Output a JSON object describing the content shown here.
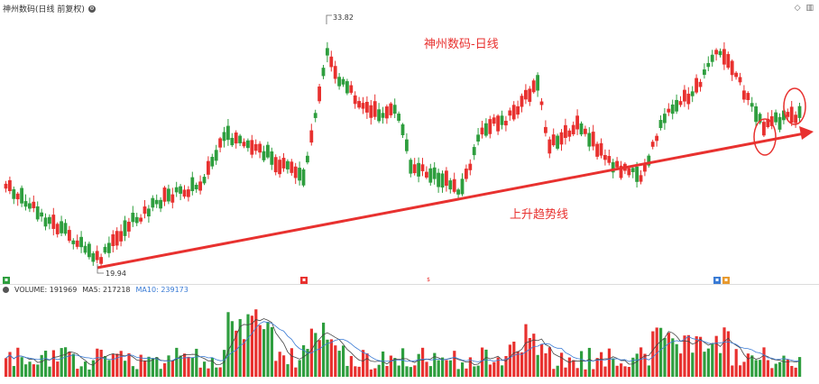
{
  "header": {
    "title": "神州数码(日线 前复权)",
    "icons": [
      "diamond-icon",
      "panel-icon"
    ]
  },
  "annotations": {
    "chart_name": "神州数码-日线",
    "trend_label": "上升趋势线",
    "high_price": "33.82",
    "low_price": "19.94"
  },
  "volume_legend": {
    "volume": "VOLUME: 191969",
    "ma5": "MA5: 217218",
    "ma10": "MA10: 239173"
  },
  "colors": {
    "up": "#e8312f",
    "down": "#2e9e3e",
    "trend": "#e8312f",
    "ma10": "#3a7bd5"
  },
  "chart_data": [
    {
      "type": "candlestick",
      "title": "神州数码-日线",
      "price_range": [
        19.94,
        33.82
      ],
      "x_count": 200,
      "annotation_high": 33.82,
      "annotation_low": 19.94,
      "trendline_label": "上升趋势线",
      "grid": false
    },
    {
      "type": "bar",
      "title": "VOLUME",
      "series": [
        {
          "name": "VOLUME",
          "value": 191969
        },
        {
          "name": "MA5",
          "value": 217218
        },
        {
          "name": "MA10",
          "value": 239173
        }
      ]
    }
  ]
}
